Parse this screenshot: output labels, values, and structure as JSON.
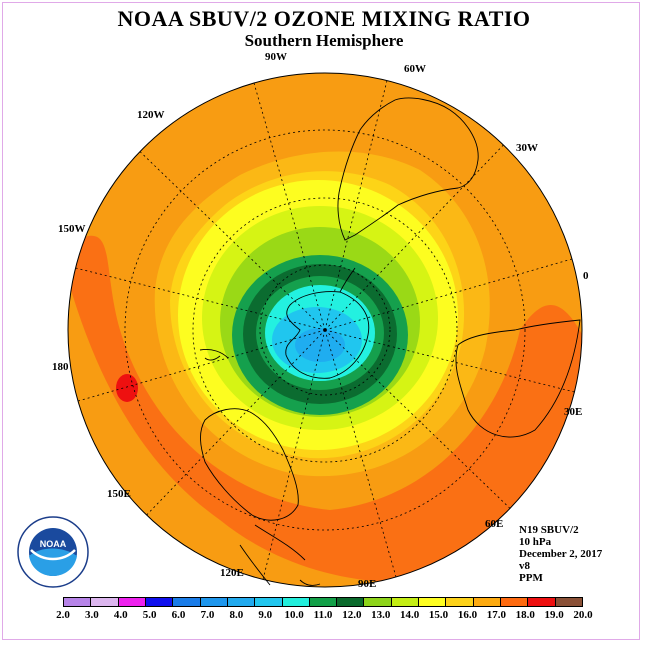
{
  "title": "NOAA SBUV/2 OZONE MIXING RATIO",
  "subtitle": "Southern Hemisphere",
  "longitude_labels": [
    "0",
    "30E",
    "60E",
    "90E",
    "120E",
    "150E",
    "180",
    "150W",
    "120W",
    "90W",
    "60W",
    "30W"
  ],
  "info": {
    "satellite": "N19 SBUV/2",
    "level": "10 hPa",
    "date": "December 2, 2017",
    "version": "v8",
    "units": "PPM"
  },
  "logo": {
    "center_text": "NOAA",
    "ring_text": "NATIONAL OCEANIC AND ATMOSPHERIC ADMINISTRATION · U.S. DEPARTMENT OF COMMERCE"
  },
  "colorbar": {
    "labels": [
      "2.0",
      "3.0",
      "4.0",
      "5.0",
      "6.0",
      "7.0",
      "8.0",
      "9.0",
      "10.0",
      "11.0",
      "12.0",
      "13.0",
      "14.0",
      "15.0",
      "16.0",
      "17.0",
      "18.0",
      "19.0",
      "20.0"
    ],
    "colors": [
      "#b784e8",
      "#dcb6ee",
      "#ee22ee",
      "#1010ee",
      "#1a7ce8",
      "#1e96ec",
      "#22aaee",
      "#22c6ee",
      "#22eedc",
      "#12a048",
      "#0a6a2c",
      "#8ed41a",
      "#c4ee14",
      "#fefe22",
      "#fdd21a",
      "#fdaa10",
      "#fe6a10",
      "#ee1010",
      "#8a5036"
    ]
  },
  "map_colors": {
    "outer": "#f89c12",
    "red_orange": "#fa7014",
    "light_orange": "#fbb815",
    "yellow_orange": "#fdd417",
    "yellow": "#fdfd20",
    "yellow_green": "#d6f414",
    "light_green": "#9ad916",
    "green": "#15a04d",
    "dark_green": "#0b6c30",
    "cyan": "#23f1e0",
    "sky_blue": "#20c6ef",
    "blue": "#1fadf0",
    "red": "#ee1010"
  }
}
